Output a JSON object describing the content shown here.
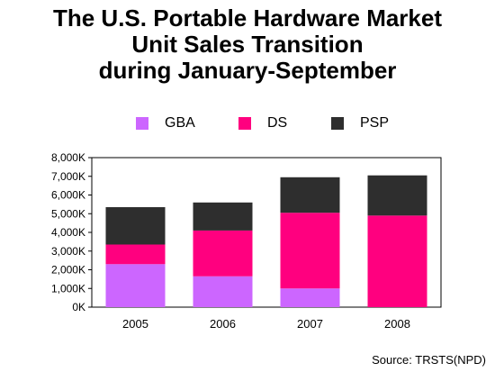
{
  "title_lines": [
    "The U.S. Portable Hardware Market",
    "Unit Sales Transition",
    "during January-September"
  ],
  "source": "Source: TRSTS(NPD)",
  "colors": {
    "GBA": "#cc66ff",
    "DS": "#ff007f",
    "PSP": "#2e2e2e"
  },
  "chart_data": {
    "type": "bar",
    "stacked": true,
    "categories": [
      "2005",
      "2006",
      "2007",
      "2008"
    ],
    "series": [
      {
        "name": "GBA",
        "values": [
          2300,
          1650,
          1000,
          0
        ]
      },
      {
        "name": "DS",
        "values": [
          1050,
          2450,
          4050,
          4900
        ]
      },
      {
        "name": "PSP",
        "values": [
          2000,
          1500,
          1900,
          2150
        ]
      }
    ],
    "ylim": [
      0,
      8000
    ],
    "yticks": [
      "0K",
      "1,000K",
      "2,000K",
      "3,000K",
      "4,000K",
      "5,000K",
      "6,000K",
      "7,000K",
      "8,000K"
    ],
    "legend_position": "top",
    "grid": false
  }
}
